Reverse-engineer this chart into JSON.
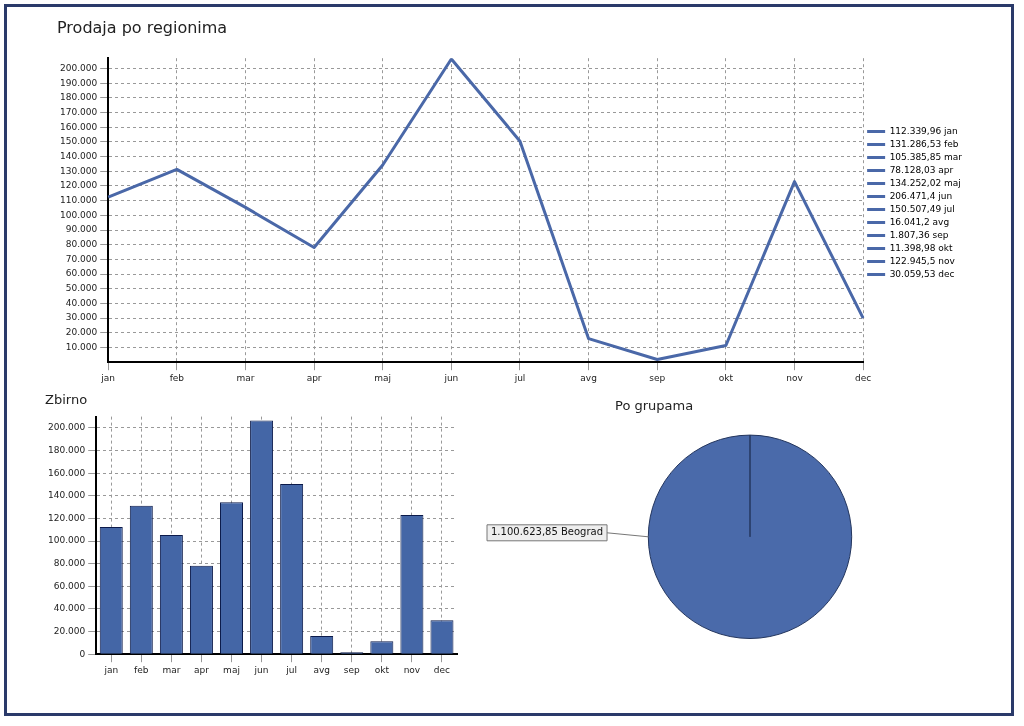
{
  "chart_data": [
    {
      "type": "line",
      "title": "Prodaja po regionima",
      "categories": [
        "jan",
        "feb",
        "mar",
        "apr",
        "maj",
        "jun",
        "jul",
        "avg",
        "sep",
        "okt",
        "nov",
        "dec"
      ],
      "values": [
        112339.96,
        131286.53,
        105385.85,
        78128.03,
        134252.02,
        206471.4,
        150507.49,
        16041.2,
        1807.36,
        11398.98,
        122945.5,
        30059.53
      ],
      "value_labels": [
        "112.339,96",
        "131.286,53",
        "105.385,85",
        "78.128,03",
        "134.252,02",
        "206.471,4",
        "150.507,49",
        "16.041,2",
        "1.807,36",
        "11.398,98",
        "122.945,5",
        "30.059,53"
      ],
      "color": "#4a68a8",
      "ylim": [
        0,
        207000
      ],
      "yticks": [
        {
          "value": 10000,
          "label": "10.000"
        },
        {
          "value": 20000,
          "label": "20.000"
        },
        {
          "value": 30000,
          "label": "30.000"
        },
        {
          "value": 40000,
          "label": "40.000"
        },
        {
          "value": 50000,
          "label": "50.000"
        },
        {
          "value": 60000,
          "label": "60.000"
        },
        {
          "value": 70000,
          "label": "70.000"
        },
        {
          "value": 80000,
          "label": "80.000"
        },
        {
          "value": 90000,
          "label": "90.000"
        },
        {
          "value": 100000,
          "label": "100.000"
        },
        {
          "value": 110000,
          "label": "110.000"
        },
        {
          "value": 120000,
          "label": "120.000"
        },
        {
          "value": 130000,
          "label": "130.000"
        },
        {
          "value": 140000,
          "label": "140.000"
        },
        {
          "value": 150000,
          "label": "150.000"
        },
        {
          "value": 160000,
          "label": "160.000"
        },
        {
          "value": 170000,
          "label": "170.000"
        },
        {
          "value": 180000,
          "label": "180.000"
        },
        {
          "value": 190000,
          "label": "190.000"
        },
        {
          "value": 200000,
          "label": "200.000"
        }
      ],
      "grid": true
    },
    {
      "type": "bar",
      "title": "Zbirno",
      "categories": [
        "jan",
        "feb",
        "mar",
        "apr",
        "maj",
        "jun",
        "jul",
        "avg",
        "sep",
        "okt",
        "nov",
        "dec"
      ],
      "values": [
        112339.96,
        131286.53,
        105385.85,
        78128.03,
        134252.02,
        206471.4,
        150507.49,
        16041.2,
        1807.36,
        11398.98,
        122945.5,
        30059.53
      ],
      "color": "#4466a6",
      "ylim": [
        0,
        210000
      ],
      "yticks": [
        0,
        {
          "value": 20000,
          "label": "20.000"
        },
        {
          "value": 40000,
          "label": "40.000"
        },
        {
          "value": 60000,
          "label": "60.000"
        },
        {
          "value": 80000,
          "label": "80.000"
        },
        {
          "value": 100000,
          "label": "100.000"
        },
        {
          "value": 120000,
          "label": "120.000"
        },
        {
          "value": 140000,
          "label": "140.000"
        },
        {
          "value": 160000,
          "label": "160.000"
        },
        {
          "value": 180000,
          "label": "180.000"
        },
        {
          "value": 200000,
          "label": "200.000"
        }
      ],
      "grid": true
    },
    {
      "type": "pie",
      "title": "Po grupama",
      "categories": [
        "Beograd"
      ],
      "values": [
        1100623.85
      ],
      "value_labels": [
        "1.100.623,85"
      ],
      "colors": [
        "#4a6aaa"
      ]
    }
  ]
}
